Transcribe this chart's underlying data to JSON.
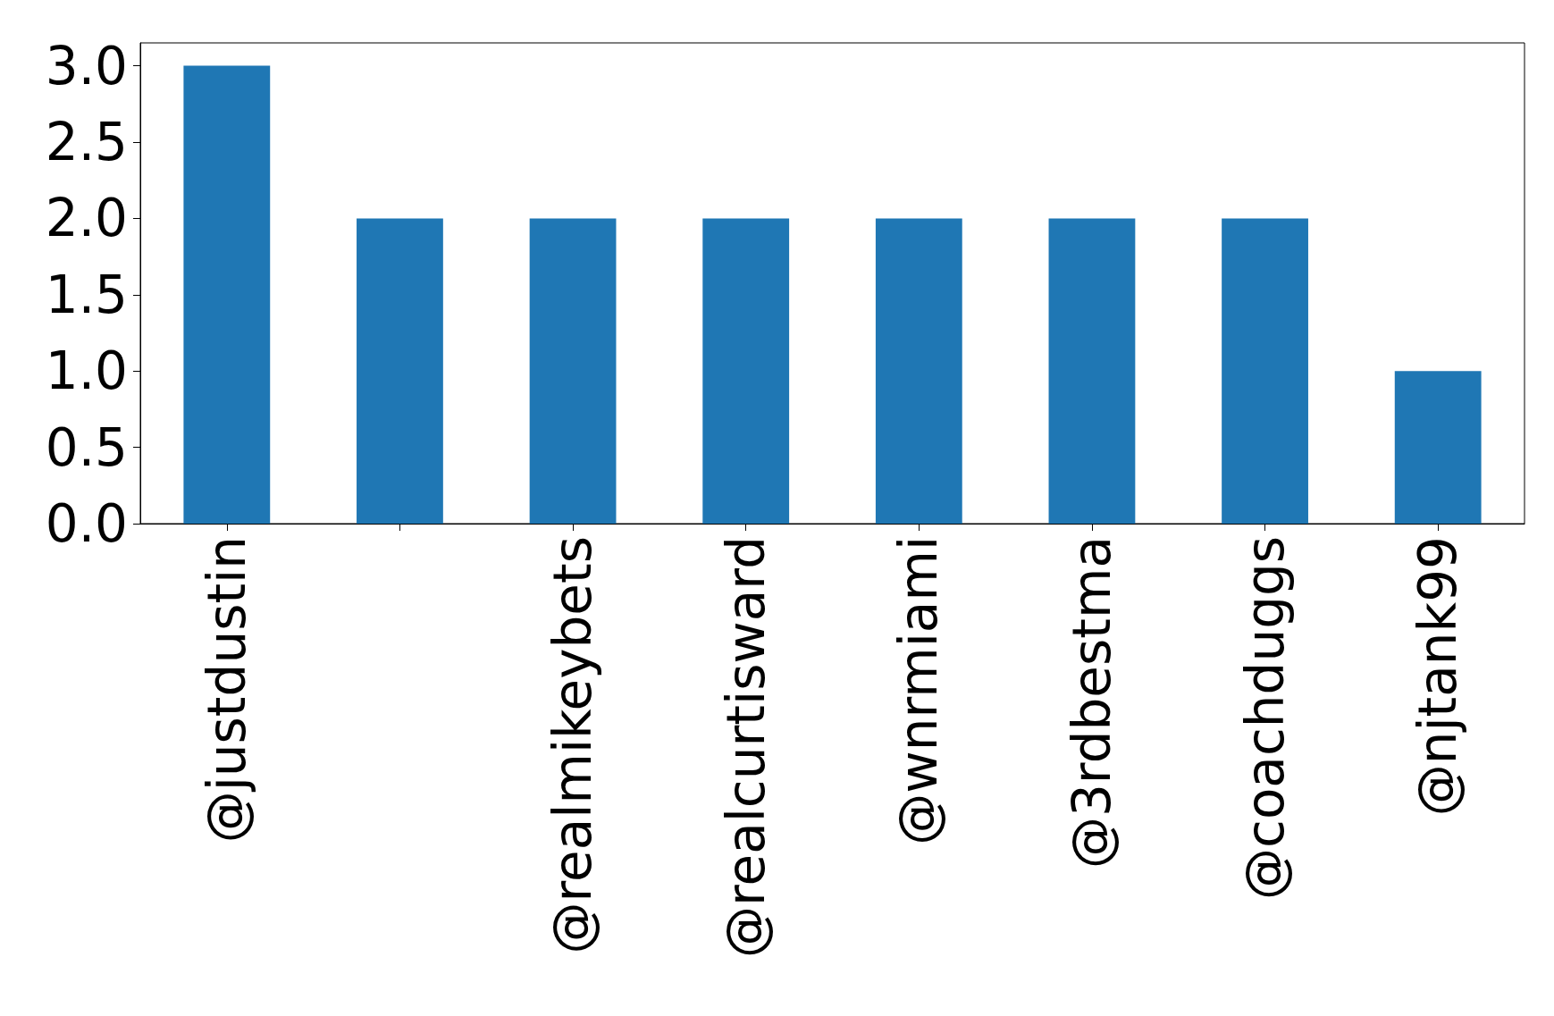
{
  "chart_data": {
    "type": "bar",
    "categories": [
      "@justdustin",
      null,
      "@realmikeybets",
      "@realcurtisward",
      "@wnrmiami",
      "@3rdbestma",
      "@coachduggs",
      "@njtank99"
    ],
    "values": [
      3,
      2,
      2,
      2,
      2,
      2,
      2,
      1
    ],
    "color": "#1f77b4",
    "ylim": [
      0,
      3.15
    ],
    "yticks": [
      {
        "value": 0,
        "label": "0.0"
      },
      {
        "value": 0.5,
        "label": "0.5"
      },
      {
        "value": 1,
        "label": "1.0"
      },
      {
        "value": 1.5,
        "label": "1.5"
      },
      {
        "value": 2,
        "label": "2.0"
      },
      {
        "value": 2.5,
        "label": "2.5"
      },
      {
        "value": 3,
        "label": "3.0"
      }
    ],
    "grid": false
  }
}
